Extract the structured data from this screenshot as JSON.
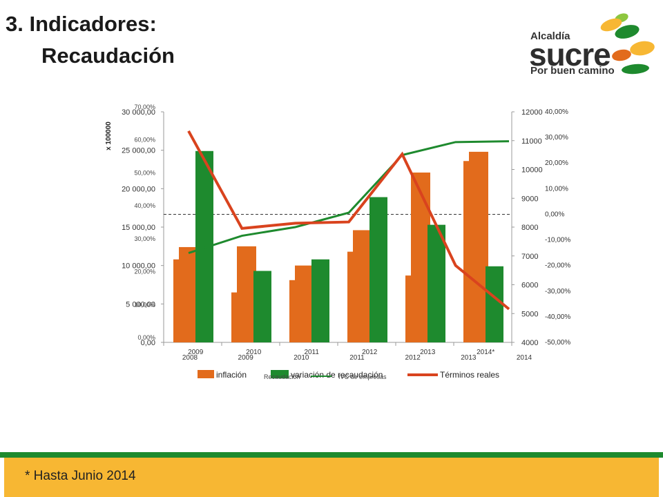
{
  "page": {
    "title_line1": "3. Indicadores:",
    "title_line2": "Recaudación",
    "footnote": "* Hasta Junio 2014"
  },
  "logo": {
    "small": "Alcaldía",
    "name": "sucre",
    "tagline": "Por buen camino",
    "colors": [
      "#f7b733",
      "#1e8a2e",
      "#e26b1c",
      "#8dc63f"
    ]
  },
  "chart_data": {
    "type": "bar",
    "categories": [
      "2009",
      "2010",
      "2011",
      "2012",
      "2013",
      "2014*"
    ],
    "x_bottom_labels": [
      "2008",
      "2009",
      "2010",
      "2011",
      "2012",
      "2013",
      "2014"
    ],
    "left_axis": {
      "unit_label": "x 100000",
      "ticks": [
        "0,00",
        "5 000,00",
        "10 000,00",
        "15 000,00",
        "20 000,00",
        "25 000,00",
        "30 000,00"
      ],
      "ylim": [
        0,
        30000
      ]
    },
    "left_axis_pct": {
      "ticks": [
        "0,00%",
        "10,00%",
        "20,00%",
        "30,00%",
        "40,00%",
        "50,00%",
        "60,00%",
        "70,00%"
      ]
    },
    "right_axis": {
      "ticks": [
        "4000",
        "5000",
        "6000",
        "7000",
        "8000",
        "9000",
        "10000",
        "11000",
        "12000"
      ],
      "ylim": [
        4000,
        12000
      ]
    },
    "right_axis_pct": {
      "ticks": [
        "-50,00%",
        "-40,00%",
        "-30,00%",
        "-20,00%",
        "-10,00%",
        "0,00%",
        "10,00%",
        "20,00%",
        "30,00%",
        "40,00%"
      ],
      "ylim": [
        -50,
        40
      ]
    },
    "series": [
      {
        "name": "inflación",
        "kind": "bar",
        "color": "#e26b1c",
        "values": [
          10800,
          6500,
          8100,
          11800,
          8700,
          23600
        ]
      },
      {
        "name": "Recaudación",
        "kind": "bar",
        "color": "#e26b1c",
        "values": [
          12400,
          12500,
          10000,
          14600,
          22100,
          24800
        ]
      },
      {
        "name": "variación de recaudación",
        "kind": "bar",
        "color": "#1e8a2e",
        "values": [
          24900,
          9300,
          10800,
          18900,
          15300,
          9900
        ]
      },
      {
        "name": "IVC de empresas",
        "kind": "line",
        "color": "#1e8a2e",
        "axis": "right",
        "x": [
          0,
          1,
          2,
          3,
          4,
          5,
          6
        ],
        "values": [
          7100,
          7700,
          8000,
          8500,
          10500,
          10950,
          10980
        ]
      },
      {
        "name": "Términos reales",
        "kind": "line",
        "color": "#d9431e",
        "axis": "right_pct",
        "x": [
          0,
          1,
          2,
          3,
          4,
          5,
          6
        ],
        "values": [
          32.5,
          -5.5,
          -3.5,
          -3.0,
          23.5,
          -20.0,
          -37.0
        ]
      }
    ],
    "legend": [
      "inflación",
      "variación de recaudación",
      "Términos reales",
      "Recaudación",
      "IVC de empresas"
    ],
    "legend_position": "bottom"
  }
}
